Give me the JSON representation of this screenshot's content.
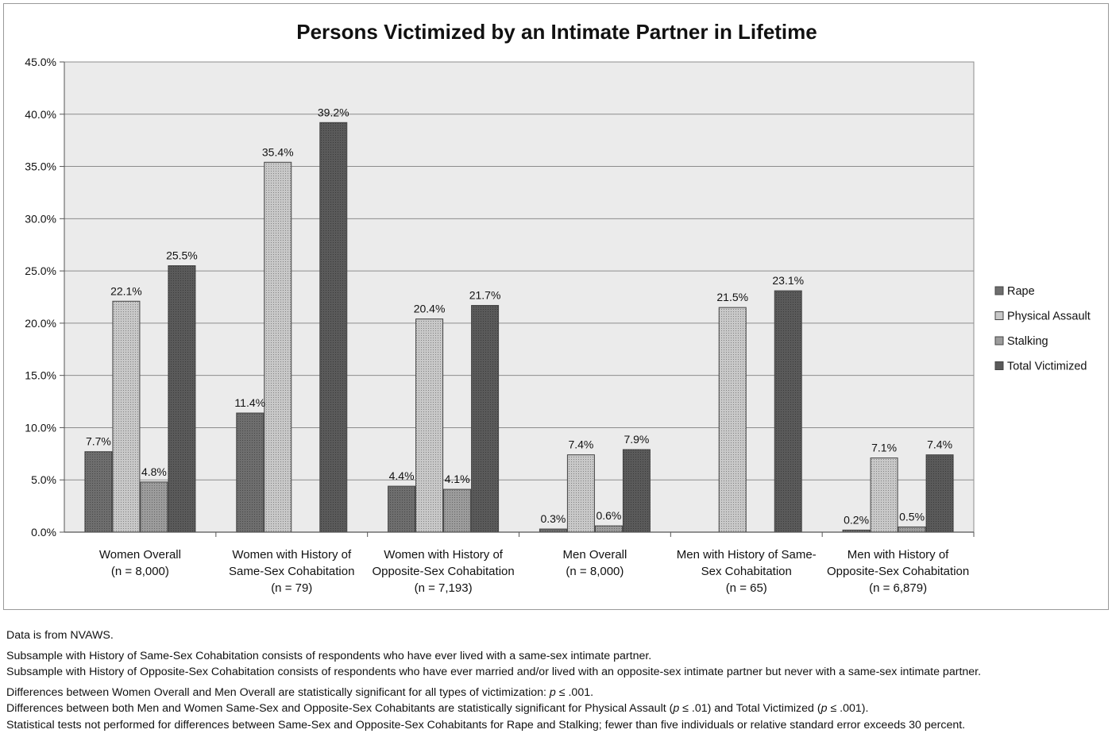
{
  "chart_data": {
    "type": "bar",
    "title": "Persons Victimized by an Intimate Partner in Lifetime",
    "xlabel": "",
    "ylabel": "",
    "ylim": [
      0,
      45
    ],
    "yticks": [
      "0.0%",
      "5.0%",
      "10.0%",
      "15.0%",
      "20.0%",
      "25.0%",
      "30.0%",
      "35.0%",
      "40.0%",
      "45.0%"
    ],
    "grid": true,
    "legend_position": "right",
    "categories": [
      [
        "Women Overall",
        "(n = 8,000)"
      ],
      [
        "Women with History of",
        "Same-Sex Cohabitation",
        "(n = 79)"
      ],
      [
        "Women with History of",
        "Opposite-Sex Cohabitation",
        "(n = 7,193)"
      ],
      [
        "Men Overall",
        "(n = 8,000)"
      ],
      [
        "Men with History of Same-",
        "Sex Cohabitation",
        "(n = 65)"
      ],
      [
        "Men with History of",
        "Opposite-Sex Cohabitation",
        "(n = 6,879)"
      ]
    ],
    "series": [
      {
        "name": "Rape",
        "color": "#6e6e6e",
        "values": [
          7.7,
          11.4,
          4.4,
          0.3,
          null,
          0.2
        ],
        "labels": [
          "7.7%",
          "11.4%",
          "4.4%",
          "0.3%",
          "",
          "0.2%"
        ]
      },
      {
        "name": "Physical Assault",
        "color": "#c8c8c8",
        "values": [
          22.1,
          35.4,
          20.4,
          7.4,
          21.5,
          7.1
        ],
        "labels": [
          "22.1%",
          "35.4%",
          "20.4%",
          "7.4%",
          "21.5%",
          "7.1%"
        ]
      },
      {
        "name": "Stalking",
        "color": "#9c9c9c",
        "values": [
          4.8,
          null,
          4.1,
          0.6,
          null,
          0.5
        ],
        "labels": [
          "4.8%",
          "",
          "4.1%",
          "0.6%",
          "",
          "0.5%"
        ]
      },
      {
        "name": "Total Victimized",
        "color": "#5a5a5a",
        "values": [
          25.5,
          39.2,
          21.7,
          7.9,
          23.1,
          7.4
        ],
        "labels": [
          "25.5%",
          "39.2%",
          "21.7%",
          "7.9%",
          "23.1%",
          "7.4%"
        ]
      }
    ]
  },
  "notes": {
    "source": "Data is from NVAWS.",
    "same_sex_def": "Subsample with History of Same-Sex Cohabitation consists of respondents who have ever lived with a same-sex intimate partner.",
    "opposite_sex_def": "Subsample with History of Opposite-Sex Cohabitation consists of respondents who have ever married and/or lived with an opposite-sex intimate partner but never with a same-sex intimate partner.",
    "diff_1_pre": "Differences between Women Overall and Men Overall are statistically significant for all types of victimization: ",
    "diff_1_p": "p",
    "diff_1_post": " ≤ .001.",
    "diff_2_a": "Differences between both Men and Women Same-Sex and Opposite-Sex Cohabitants are statistically significant for Physical Assault (",
    "diff_2_p1": "p",
    "diff_2_b": " ≤ .01) and Total Victimized (",
    "diff_2_p2": "p",
    "diff_2_c": " ≤ .001).",
    "diff_3": "Statistical tests not performed for differences between Same-Sex and Opposite-Sex Cohabitants for Rape and Stalking; fewer than five individuals or relative standard error exceeds 30 percent."
  }
}
